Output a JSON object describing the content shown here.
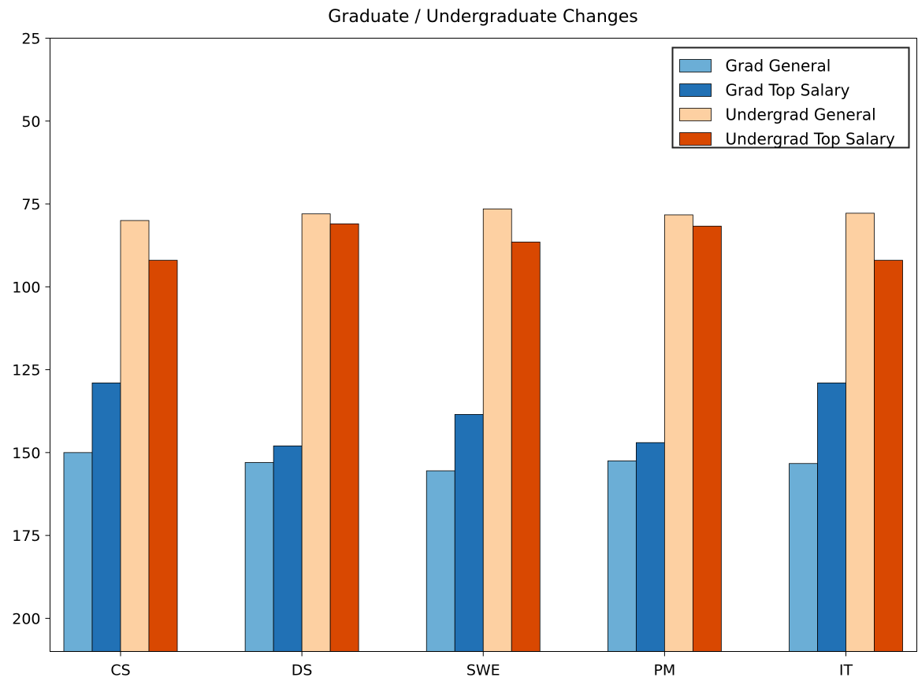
{
  "chart_data": {
    "type": "bar",
    "title": "Graduate / Undergraduate Changes",
    "xlabel": "",
    "ylabel": "",
    "categories": [
      "CS",
      "DS",
      "SWE",
      "PM",
      "IT"
    ],
    "series": [
      {
        "name": "Grad General",
        "color": "#6baed6",
        "values": [
          150,
          153,
          155.5,
          152.5,
          153.3
        ]
      },
      {
        "name": "Grad Top Salary",
        "color": "#2171b5",
        "values": [
          129,
          148,
          138.5,
          147,
          129
        ]
      },
      {
        "name": "Undergrad General",
        "color": "#fdd0a2",
        "values": [
          80,
          78,
          76.5,
          78.3,
          77.8
        ]
      },
      {
        "name": "Undergrad Top Salary",
        "color": "#d94801",
        "values": [
          92,
          81,
          86.5,
          81.7,
          92
        ]
      }
    ],
    "ylim": [
      210,
      25
    ],
    "y_inverted": true,
    "yticks": [
      25,
      50,
      75,
      100,
      125,
      150,
      175,
      200
    ],
    "grid": false,
    "legend_position": "top-right"
  }
}
